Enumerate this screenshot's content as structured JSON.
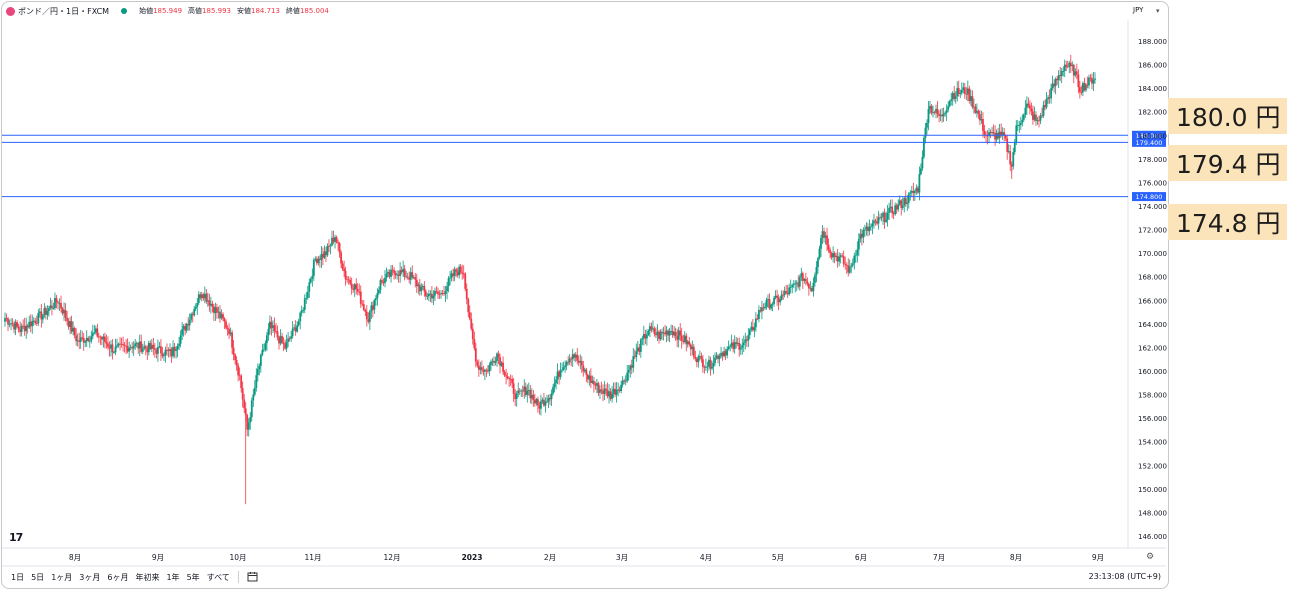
{
  "header": {
    "symbol": "ポンド／円・1日・FXCM",
    "open_label": "始値",
    "open": "185.949",
    "high_label": "高値",
    "high": "185.993",
    "low_label": "安値",
    "low": "184.713",
    "close_label": "終値",
    "close": "185.004",
    "currency": "JPY"
  },
  "bottom": {
    "ranges": [
      "1日",
      "5日",
      "1ヶ月",
      "3ヶ月",
      "6ヶ月",
      "年初来",
      "1年",
      "5年",
      "すべて"
    ],
    "clock": "23:13:08 (UTC+9)"
  },
  "callouts": [
    "180.0 円",
    "179.4 円",
    "174.8 円"
  ],
  "colors": {
    "up": "#089981",
    "down": "#f23645",
    "hline": "#2962ff",
    "callout_bg": "#fbe3ba"
  },
  "chart_data": {
    "type": "candlestick",
    "yaxis": {
      "min": 146,
      "max": 188,
      "ticks": [
        "188.000",
        "186.000",
        "184.000",
        "182.000",
        "180.000",
        "178.000",
        "176.000",
        "174.000",
        "172.000",
        "170.000",
        "168.000",
        "166.000",
        "164.000",
        "162.000",
        "160.000",
        "158.000",
        "156.000",
        "154.000",
        "152.000",
        "150.000",
        "148.000",
        "146.000"
      ]
    },
    "xaxis": {
      "labels": [
        "8月",
        "9月",
        "10月",
        "11月",
        "12月",
        "2023",
        "2月",
        "3月",
        "4月",
        "5月",
        "6月",
        "7月",
        "8月",
        "9月"
      ]
    },
    "horizontal_lines": [
      {
        "value": 180.0,
        "label": "180.000"
      },
      {
        "value": 179.4,
        "label": "179.400"
      },
      {
        "value": 174.8,
        "label": "174.800"
      }
    ],
    "anchors": [
      [
        0,
        164.5
      ],
      [
        10,
        163.5
      ],
      [
        25,
        164.8
      ],
      [
        35,
        166.0
      ],
      [
        48,
        162.5
      ],
      [
        60,
        163.2
      ],
      [
        72,
        161.8
      ],
      [
        85,
        162.2
      ],
      [
        100,
        161.8
      ],
      [
        110,
        161.5
      ],
      [
        120,
        164.0
      ],
      [
        130,
        166.8
      ],
      [
        140,
        165.0
      ],
      [
        148,
        163.5
      ],
      [
        155,
        159.5
      ],
      [
        160,
        155.0
      ],
      [
        167,
        160.0
      ],
      [
        175,
        163.8
      ],
      [
        185,
        162.0
      ],
      [
        195,
        164.5
      ],
      [
        205,
        169.5
      ],
      [
        212,
        170.0
      ],
      [
        218,
        171.5
      ],
      [
        225,
        168.0
      ],
      [
        232,
        167.0
      ],
      [
        240,
        164.5
      ],
      [
        248,
        167.5
      ],
      [
        258,
        168.5
      ],
      [
        268,
        168.0
      ],
      [
        278,
        166.5
      ],
      [
        288,
        166.5
      ],
      [
        298,
        168.5
      ],
      [
        303,
        168.5
      ],
      [
        307,
        164.0
      ],
      [
        312,
        160.5
      ],
      [
        318,
        160.0
      ],
      [
        325,
        161.5
      ],
      [
        330,
        160.0
      ],
      [
        338,
        157.8
      ],
      [
        345,
        158.5
      ],
      [
        352,
        157.0
      ],
      [
        360,
        158.0
      ],
      [
        368,
        160.5
      ],
      [
        375,
        161.5
      ],
      [
        385,
        159.5
      ],
      [
        392,
        158.5
      ],
      [
        400,
        158.0
      ],
      [
        408,
        159.0
      ],
      [
        415,
        161.0
      ],
      [
        425,
        163.5
      ],
      [
        432,
        163.0
      ],
      [
        440,
        163.5
      ],
      [
        450,
        162.5
      ],
      [
        458,
        161.0
      ],
      [
        465,
        160.5
      ],
      [
        472,
        161.5
      ],
      [
        480,
        162.0
      ],
      [
        490,
        162.5
      ],
      [
        500,
        165.5
      ],
      [
        510,
        166.0
      ],
      [
        520,
        167.0
      ],
      [
        527,
        168.0
      ],
      [
        533,
        167.0
      ],
      [
        540,
        172.0
      ],
      [
        546,
        170.0
      ],
      [
        552,
        169.5
      ],
      [
        558,
        168.5
      ],
      [
        565,
        171.5
      ],
      [
        575,
        172.5
      ],
      [
        585,
        173.5
      ],
      [
        595,
        174.5
      ],
      [
        603,
        175.5
      ],
      [
        610,
        182.5
      ],
      [
        618,
        181.5
      ],
      [
        626,
        183.5
      ],
      [
        635,
        183.8
      ],
      [
        642,
        182.0
      ],
      [
        648,
        180.0
      ],
      [
        655,
        180.0
      ],
      [
        660,
        179.8
      ],
      [
        665,
        177.5
      ],
      [
        668,
        180.5
      ],
      [
        675,
        182.5
      ],
      [
        682,
        181.0
      ],
      [
        690,
        183.5
      ],
      [
        700,
        186.0
      ],
      [
        706,
        185.5
      ],
      [
        710,
        184.0
      ],
      [
        716,
        184.5
      ],
      [
        720,
        185.0
      ]
    ]
  }
}
